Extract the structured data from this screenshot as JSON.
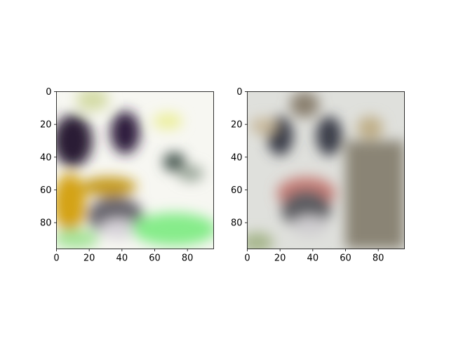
{
  "chart_data": [
    {
      "type": "image",
      "panel": "left",
      "x": {
        "lim": [
          0,
          96
        ],
        "ticks": [
          0,
          20,
          40,
          60,
          80
        ],
        "tick_labels": [
          "0",
          "20",
          "40",
          "60",
          "80"
        ]
      },
      "y": {
        "lim": [
          96,
          0
        ],
        "inverted": true,
        "ticks": [
          0,
          20,
          40,
          60,
          80
        ],
        "tick_labels": [
          "0",
          "20",
          "40",
          "60",
          "80"
        ]
      },
      "grid": false,
      "image_content": {
        "background": "#f7f7f2",
        "regions": [
          {
            "shape": "ellipse",
            "center": [
              10,
              30
            ],
            "radii": [
              12,
              16
            ],
            "color": "#2a1a35"
          },
          {
            "shape": "ellipse",
            "center": [
              42,
              25
            ],
            "radii": [
              9,
              13
            ],
            "color": "#2e1f3c"
          },
          {
            "shape": "ellipse",
            "center": [
              22,
              5
            ],
            "radii": [
              10,
              7
            ],
            "color": "#d4dba6"
          },
          {
            "shape": "ellipse",
            "center": [
              68,
              18
            ],
            "radii": [
              9,
              5
            ],
            "color": "#ecef9c"
          },
          {
            "shape": "ellipse",
            "center": [
              72,
              43
            ],
            "radii": [
              7,
              6
            ],
            "color": "#4a5a52"
          },
          {
            "shape": "ellipse",
            "center": [
              82,
              50
            ],
            "radii": [
              8,
              5
            ],
            "color": "#9faa9e"
          },
          {
            "shape": "ellipse",
            "center": [
              8,
              68
            ],
            "radii": [
              10,
              18
            ],
            "color": "#d4a317"
          },
          {
            "shape": "ellipse",
            "center": [
              32,
              58
            ],
            "radii": [
              17,
              6
            ],
            "color": "#c49a1a"
          },
          {
            "shape": "ellipse",
            "center": [
              36,
              76
            ],
            "radii": [
              17,
              12
            ],
            "color": "#6b6870"
          },
          {
            "shape": "ellipse",
            "center": [
              38,
              84
            ],
            "radii": [
              12,
              6
            ],
            "color": "#d8d4da"
          },
          {
            "shape": "ellipse",
            "center": [
              72,
              84
            ],
            "radii": [
              26,
              10
            ],
            "color": "#86ec8a"
          },
          {
            "shape": "ellipse",
            "center": [
              12,
              90
            ],
            "radii": [
              14,
              6
            ],
            "color": "#a6e49a"
          }
        ]
      }
    },
    {
      "type": "image",
      "panel": "right",
      "x": {
        "lim": [
          0,
          96
        ],
        "ticks": [
          0,
          20,
          40,
          60,
          80
        ],
        "tick_labels": [
          "0",
          "20",
          "40",
          "60",
          "80"
        ]
      },
      "y": {
        "lim": [
          96,
          0
        ],
        "inverted": true,
        "ticks": [
          0,
          20,
          40,
          60,
          80
        ],
        "tick_labels": [
          "0",
          "20",
          "40",
          "60",
          "80"
        ]
      },
      "grid": false,
      "image_content": {
        "background": "#dfe0dc",
        "regions": [
          {
            "shape": "ellipse",
            "center": [
              20,
              27
            ],
            "radii": [
              8,
              12
            ],
            "color": "#3b3c49"
          },
          {
            "shape": "ellipse",
            "center": [
              50,
              27
            ],
            "radii": [
              8,
              12
            ],
            "color": "#3b3c49"
          },
          {
            "shape": "ellipse",
            "center": [
              35,
              8
            ],
            "radii": [
              9,
              8
            ],
            "color": "#8a8070"
          },
          {
            "shape": "ellipse",
            "center": [
              10,
              21
            ],
            "radii": [
              8,
              5
            ],
            "color": "#c8b89a"
          },
          {
            "shape": "ellipse",
            "center": [
              75,
              22
            ],
            "radii": [
              8,
              7
            ],
            "color": "#bfae87"
          },
          {
            "shape": "rect",
            "from": [
              60,
              30
            ],
            "to": [
              96,
              96
            ],
            "color": "#8a8474"
          },
          {
            "shape": "ellipse",
            "center": [
              36,
              62
            ],
            "radii": [
              18,
              10
            ],
            "color": "#c77f78"
          },
          {
            "shape": "ellipse",
            "center": [
              36,
              72
            ],
            "radii": [
              15,
              12
            ],
            "color": "#5f5e63"
          },
          {
            "shape": "ellipse",
            "center": [
              38,
              82
            ],
            "radii": [
              11,
              6
            ],
            "color": "#cfcdd0"
          },
          {
            "shape": "ellipse",
            "center": [
              6,
              92
            ],
            "radii": [
              10,
              6
            ],
            "color": "#a5b58a"
          }
        ]
      }
    }
  ]
}
